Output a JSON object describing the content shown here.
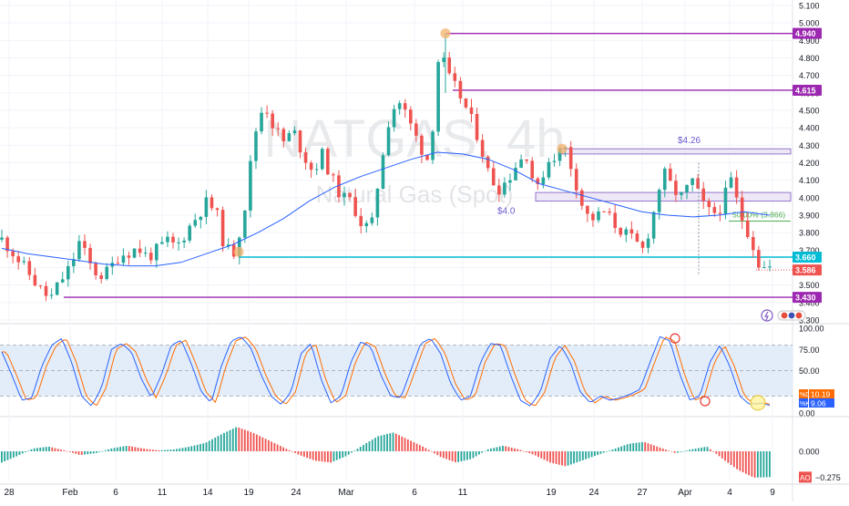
{
  "watermark": {
    "symbol": "NATGAS, 4h",
    "name": "Natural Gas (Spot)"
  },
  "colors": {
    "up": "#26a69a",
    "down": "#ef5350",
    "ma": "#2962ff",
    "purple": "#9c27b0",
    "teal": "#00bcd4",
    "fib": "#4caf50",
    "k_line": "#2962ff",
    "d_line": "#ff6d00",
    "stoch_band": "#e3edf9",
    "marker": "#f6b26b"
  },
  "chart_data": [
    {
      "type": "candlestick",
      "panel": "price",
      "timeframe": "4h",
      "ylim": [
        3.3,
        5.1
      ],
      "y_ticks": [
        "5.100",
        "5.000",
        "4.900",
        "4.800",
        "4.700",
        "4.600",
        "4.500",
        "4.400",
        "4.300",
        "4.200",
        "4.100",
        "4.000",
        "3.900",
        "3.800",
        "3.700",
        "3.600",
        "3.500",
        "3.400",
        "3.300"
      ],
      "x_ticks": [
        "28",
        "Feb",
        "6",
        "11",
        "14",
        "19",
        "24",
        "Mar",
        "6",
        "11",
        "19",
        "24",
        "27",
        "Apr",
        "4",
        "9"
      ],
      "close_path": [
        3.76,
        3.7,
        3.62,
        3.55,
        3.47,
        3.42,
        3.52,
        3.6,
        3.75,
        3.62,
        3.55,
        3.58,
        3.67,
        3.69,
        3.71,
        3.66,
        3.7,
        3.75,
        3.72,
        3.81,
        3.89,
        3.97,
        3.93,
        3.7,
        3.69,
        3.95,
        4.36,
        4.55,
        4.4,
        4.32,
        4.38,
        4.25,
        4.15,
        4.25,
        4.1,
        4.0,
        3.98,
        3.85,
        3.82,
        4.2,
        4.5,
        4.55,
        4.42,
        4.3,
        4.2,
        4.85,
        4.68,
        4.6,
        4.48,
        4.35,
        4.15,
        4.05,
        4.1,
        4.2,
        4.25,
        4.02,
        4.2,
        4.25,
        4.28,
        4.1,
        3.9,
        3.88,
        3.92,
        3.85,
        3.8,
        3.75,
        3.7,
        3.9,
        4.15,
        4.05,
        4.0,
        4.1,
        3.97,
        3.9,
        3.95,
        4.1,
        3.9,
        3.78,
        3.6,
        3.6
      ],
      "moving_average": [
        3.71,
        3.68,
        3.66,
        3.64,
        3.62,
        3.61,
        3.61,
        3.63,
        3.68,
        3.73,
        3.8,
        3.88,
        3.98,
        4.06,
        4.12,
        4.17,
        4.22,
        4.26,
        4.25,
        4.22,
        4.16,
        4.08,
        4.04,
        4.0,
        3.96,
        3.92,
        3.9,
        3.89,
        3.9,
        3.92,
        3.9
      ],
      "horizontal_levels": [
        {
          "value": 4.94,
          "label": "4.940",
          "color": "purple"
        },
        {
          "value": 4.615,
          "label": "4.615",
          "color": "purple"
        },
        {
          "value": 3.66,
          "label": "3.660",
          "color": "teal"
        },
        {
          "value": 3.43,
          "label": "3.430",
          "color": "purple"
        }
      ],
      "zones": [
        {
          "label": "$4.26",
          "top": 4.28,
          "bottom": 4.25
        },
        {
          "label": "$4.0",
          "top": 4.03,
          "bottom": 3.98
        }
      ],
      "fib_level": {
        "label": "50.00% (3.866)",
        "value": 3.866
      },
      "last_price": {
        "value": 3.586,
        "label": "3.586"
      }
    },
    {
      "type": "line",
      "panel": "stochastic",
      "ylim": [
        0,
        100
      ],
      "y_ticks": [
        "100.00",
        "75.00",
        "50.00",
        "25.00",
        "0.00"
      ],
      "band": [
        20,
        80
      ],
      "series": [
        {
          "name": "%D",
          "last": 10.19,
          "label": "10.19"
        },
        {
          "name": "%K",
          "last": 9.06,
          "label": "9.06"
        }
      ],
      "k_path": [
        72,
        45,
        15,
        18,
        55,
        80,
        88,
        60,
        20,
        8,
        30,
        75,
        82,
        72,
        40,
        18,
        45,
        80,
        86,
        58,
        25,
        12,
        55,
        85,
        90,
        76,
        45,
        20,
        10,
        25,
        70,
        82,
        40,
        12,
        20,
        60,
        84,
        78,
        45,
        20,
        18,
        50,
        82,
        88,
        70,
        35,
        15,
        20,
        60,
        82,
        80,
        45,
        15,
        8,
        25,
        65,
        80,
        60,
        25,
        12,
        20,
        15,
        18,
        22,
        28,
        60,
        90,
        85,
        45,
        15,
        20,
        60,
        80,
        55,
        20,
        10,
        12,
        9
      ]
    },
    {
      "type": "bar",
      "panel": "awesome_oscillator",
      "ylim": [
        -0.32,
        0.32
      ],
      "y_ticks": [
        "0.000"
      ],
      "series": [
        {
          "name": "AO",
          "last": -0.275,
          "label": "−0.275"
        }
      ],
      "values_path": [
        -0.12,
        -0.05,
        0.03,
        0.05,
        0.01,
        -0.04,
        -0.02,
        0.03,
        0.06,
        0.03,
        0.01,
        0.02,
        0.05,
        0.09,
        0.18,
        0.26,
        0.2,
        0.12,
        0.04,
        -0.04,
        -0.1,
        -0.12,
        -0.05,
        0.06,
        0.16,
        0.2,
        0.12,
        0.04,
        -0.06,
        -0.12,
        -0.08,
        0.02,
        0.06,
        0.02,
        -0.04,
        -0.12,
        -0.16,
        -0.1,
        -0.04,
        0.02,
        0.08,
        0.1,
        0.04,
        -0.02,
        0.02,
        0.05,
        -0.08,
        -0.2,
        -0.28,
        -0.275
      ]
    }
  ]
}
